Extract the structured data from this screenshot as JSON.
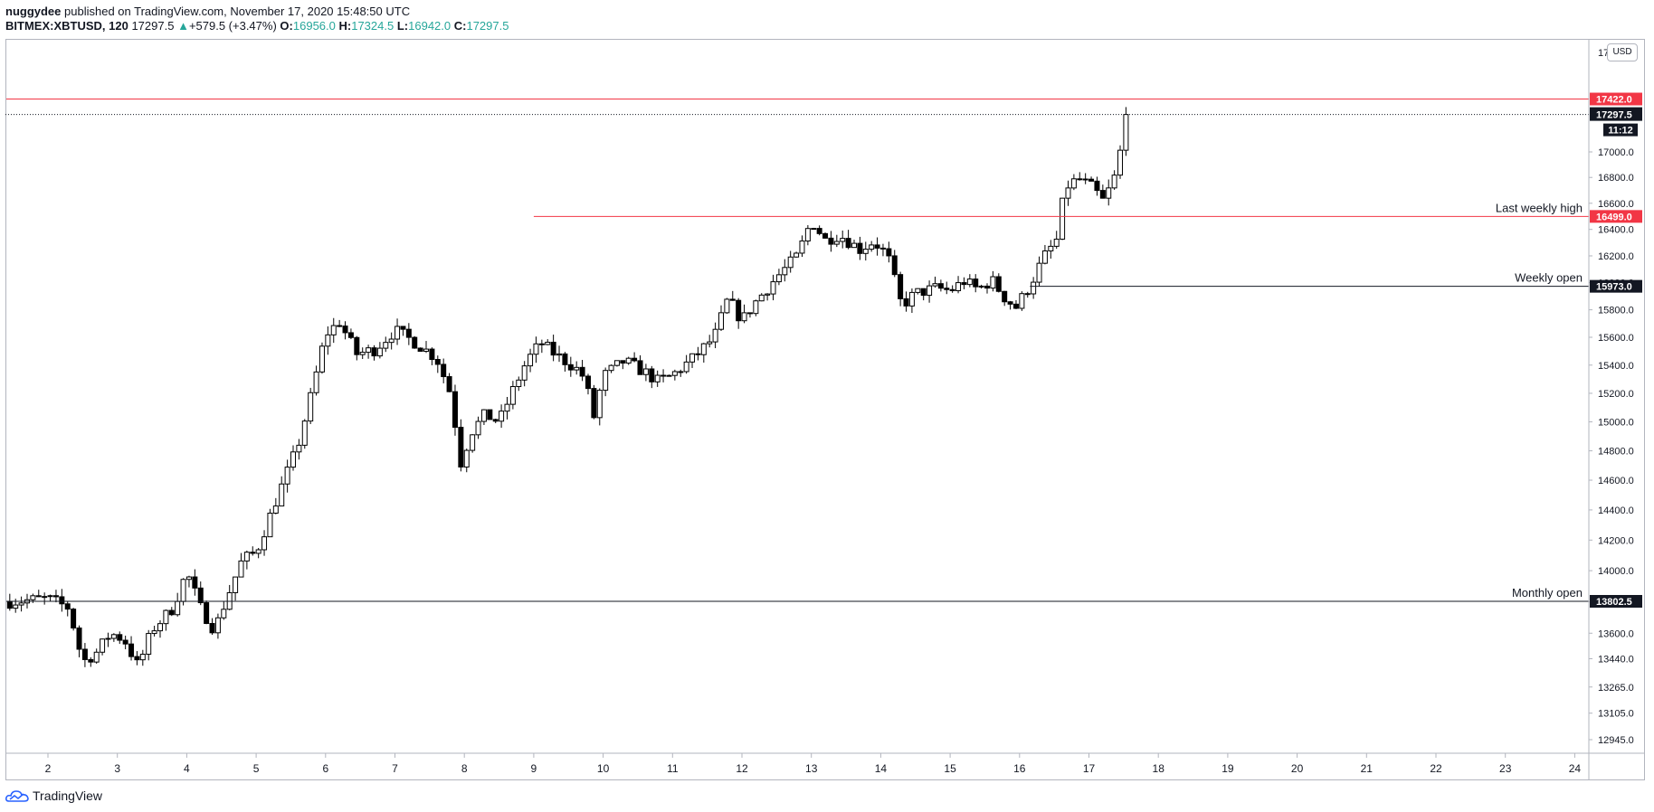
{
  "header": {
    "author": "nuggydee",
    "published_text": "published on TradingView.com, November 17, 2020 15:48:50 UTC",
    "symbol": "BITMEX:XBTUSD, 120",
    "last": "17297.5",
    "change_arrow": "▲",
    "change": "+579.5 (+3.47%)",
    "o_label": "O:",
    "o_value": "16956.0",
    "h_label": "H:",
    "h_value": "17324.5",
    "l_label": "L:",
    "l_value": "16942.0",
    "c_label": "C:",
    "c_value": "17297.5"
  },
  "price_axis": {
    "currency_button": "USD",
    "partial_top_label": "17",
    "countdown": "11:12"
  },
  "footer": {
    "brand": "TradingView",
    "logo_icon": "tradingview-cloud-icon"
  },
  "colors": {
    "red_level": "#f23645",
    "black_level": "#131722",
    "up_candle": "#ffffff",
    "down_candle": "#000000",
    "text_accent": "#26a69a"
  },
  "chart_data": {
    "type": "candlestick",
    "scale": "log",
    "x_unit": "day of November 2020 (2-hour candles)",
    "xlim": [
      1.4,
      24.5
    ],
    "ylim": [
      12860,
      17800
    ],
    "x_ticks": [
      "2",
      "3",
      "4",
      "5",
      "6",
      "7",
      "8",
      "9",
      "10",
      "11",
      "12",
      "13",
      "14",
      "15",
      "16",
      "17",
      "18",
      "19",
      "20",
      "21",
      "22",
      "23",
      "24"
    ],
    "y_ticks": [
      "17000.0",
      "16800.0",
      "16600.0",
      "16400.0",
      "16200.0",
      "16000.0",
      "15800.0",
      "15600.0",
      "15400.0",
      "15200.0",
      "15000.0",
      "14800.0",
      "14600.0",
      "14400.0",
      "14200.0",
      "14000.0",
      "13800.0",
      "13600.0",
      "13440.0",
      "13265.0",
      "13105.0",
      "12945.0"
    ],
    "last_price": 17297.5,
    "levels": [
      {
        "label": "",
        "price": 17422.0,
        "price_text": "17422.0",
        "color": "#f23645",
        "x_start": 1.4
      },
      {
        "label": "Last weekly high",
        "price": 16499.0,
        "price_text": "16499.0",
        "color": "#f23645",
        "x_start": 9.0
      },
      {
        "label": "Weekly open",
        "price": 15973.0,
        "price_text": "15973.0",
        "color": "#131722",
        "x_start": 16.15
      },
      {
        "label": "Monthly open",
        "price": 13802.5,
        "price_text": "13802.5",
        "color": "#131722",
        "x_start": 1.4
      }
    ],
    "current_price_label": "17297.5",
    "path_keypoints": [
      [
        1.45,
        13800
      ],
      [
        2.0,
        13820
      ],
      [
        2.3,
        13760
      ],
      [
        2.5,
        13420
      ],
      [
        2.7,
        13480
      ],
      [
        2.9,
        13600
      ],
      [
        3.1,
        13560
      ],
      [
        3.3,
        13390
      ],
      [
        3.5,
        13620
      ],
      [
        3.8,
        13760
      ],
      [
        4.0,
        13990
      ],
      [
        4.2,
        13760
      ],
      [
        4.4,
        13620
      ],
      [
        4.6,
        13850
      ],
      [
        4.8,
        14070
      ],
      [
        5.0,
        14120
      ],
      [
        5.3,
        14480
      ],
      [
        5.6,
        14830
      ],
      [
        5.8,
        15200
      ],
      [
        6.0,
        15620
      ],
      [
        6.2,
        15710
      ],
      [
        6.45,
        15480
      ],
      [
        6.7,
        15510
      ],
      [
        7.0,
        15650
      ],
      [
        7.3,
        15560
      ],
      [
        7.6,
        15450
      ],
      [
        7.8,
        15200
      ],
      [
        7.95,
        14720
      ],
      [
        8.1,
        14930
      ],
      [
        8.3,
        15050
      ],
      [
        8.5,
        15000
      ],
      [
        8.7,
        15220
      ],
      [
        8.9,
        15430
      ],
      [
        9.1,
        15560
      ],
      [
        9.3,
        15480
      ],
      [
        9.6,
        15380
      ],
      [
        9.75,
        15300
      ],
      [
        9.85,
        15000
      ],
      [
        10.0,
        15320
      ],
      [
        10.3,
        15430
      ],
      [
        10.6,
        15350
      ],
      [
        10.8,
        15280
      ],
      [
        11.0,
        15330
      ],
      [
        11.3,
        15450
      ],
      [
        11.6,
        15600
      ],
      [
        11.8,
        15880
      ],
      [
        12.0,
        15720
      ],
      [
        12.2,
        15860
      ],
      [
        12.5,
        16040
      ],
      [
        12.8,
        16200
      ],
      [
        13.0,
        16470
      ],
      [
        13.2,
        16320
      ],
      [
        13.4,
        16360
      ],
      [
        13.7,
        16250
      ],
      [
        13.9,
        16310
      ],
      [
        14.1,
        16200
      ],
      [
        14.3,
        15830
      ],
      [
        14.5,
        15920
      ],
      [
        14.8,
        15960
      ],
      [
        15.0,
        15940
      ],
      [
        15.2,
        16010
      ],
      [
        15.4,
        15950
      ],
      [
        15.6,
        16020
      ],
      [
        15.8,
        15880
      ],
      [
        15.95,
        15820
      ],
      [
        16.15,
        15980
      ],
      [
        16.35,
        16190
      ],
      [
        16.55,
        16330
      ],
      [
        16.65,
        16720
      ],
      [
        16.85,
        16790
      ],
      [
        17.05,
        16720
      ],
      [
        17.2,
        16620
      ],
      [
        17.35,
        16760
      ],
      [
        17.45,
        17000
      ],
      [
        17.58,
        17297.5
      ]
    ]
  }
}
